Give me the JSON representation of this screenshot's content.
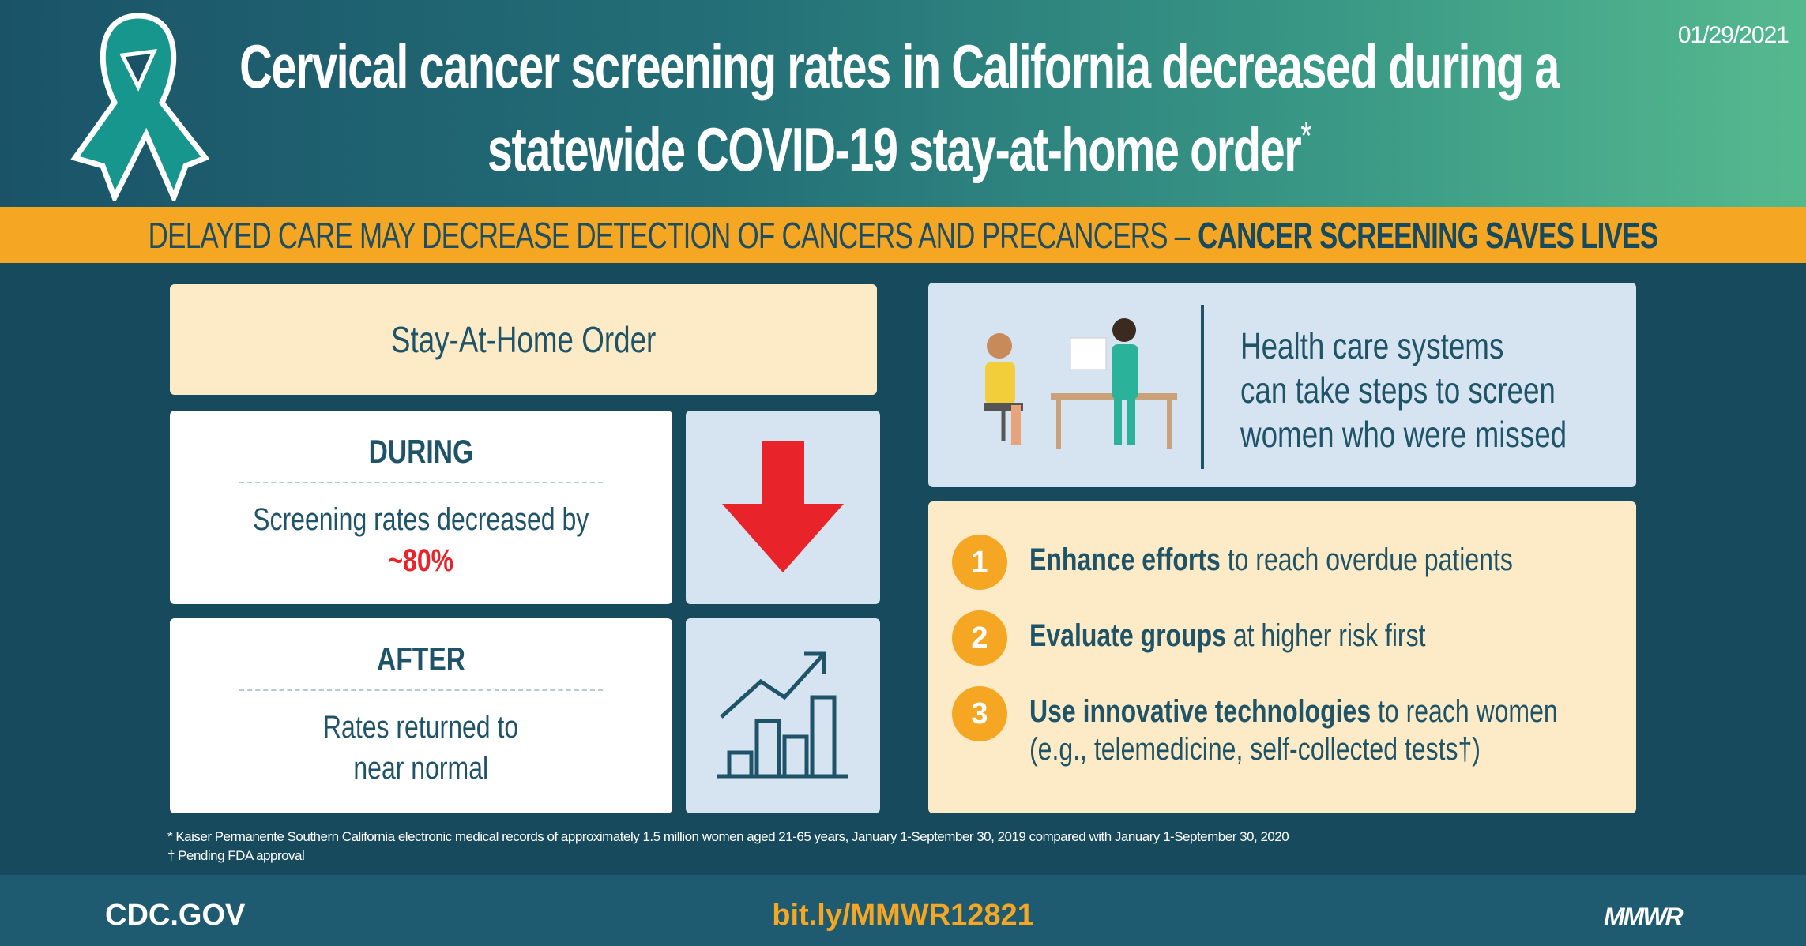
{
  "header": {
    "title": "Cervical cancer screening rates in California decreased during a statewide COVID-19 stay-at-home order",
    "title_mark": "*",
    "date": "01/29/2021"
  },
  "band": {
    "text": "DELAYED CARE MAY DECREASE DETECTION OF CANCERS AND PRECANCERS –",
    "emphasis": "CANCER SCREENING SAVES LIVES"
  },
  "left": {
    "stay": "Stay-At-Home Order",
    "during": {
      "heading": "DURING",
      "text": "Screening rates decreased by",
      "value": "~80%"
    },
    "after": {
      "heading": "AFTER",
      "line1": "Rates returned to",
      "line2": "near normal"
    }
  },
  "right": {
    "intro": [
      "Health care systems",
      "can take steps to screen",
      "women who were missed"
    ],
    "steps": [
      {
        "num": "1",
        "bold": "Enhance efforts",
        "rest": " to reach overdue patients",
        "line2": ""
      },
      {
        "num": "2",
        "bold": "Evaluate groups",
        "rest": " at higher risk first",
        "line2": ""
      },
      {
        "num": "3",
        "bold": "Use innovative technologies",
        "rest": " to reach women",
        "line2": "(e.g., telemedicine, self-collected tests†)"
      }
    ]
  },
  "footnotes": [
    "* Kaiser Permanente Southern California electronic medical records of approximately 1.5 million women aged 21-65 years, January 1-September 30, 2019 compared with January 1-September 30, 2020",
    "† Pending FDA approval"
  ],
  "footer": {
    "left": "CDC.GOV",
    "center": "bit.ly/MMWR12821",
    "right": "MMWR"
  },
  "colors": {
    "teal_dark": "#174a5c",
    "orange": "#f5a623",
    "red": "#e8232a",
    "cream": "#fdebc8",
    "light_blue": "#d6e3f0"
  }
}
